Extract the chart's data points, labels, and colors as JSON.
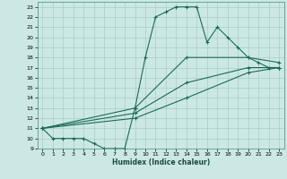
{
  "xlabel": "Humidex (Indice chaleur)",
  "background_color": "#cce8e4",
  "grid_color": "#a8ccc8",
  "line_color": "#1a6b5a",
  "xlim": [
    -0.5,
    23.5
  ],
  "ylim": [
    9,
    23.5
  ],
  "yticks": [
    9,
    10,
    11,
    12,
    13,
    14,
    15,
    16,
    17,
    18,
    19,
    20,
    21,
    22,
    23
  ],
  "xticks": [
    0,
    1,
    2,
    3,
    4,
    5,
    6,
    7,
    8,
    9,
    10,
    11,
    12,
    13,
    14,
    15,
    16,
    17,
    18,
    19,
    20,
    21,
    22,
    23
  ],
  "series": [
    {
      "x": [
        0,
        1,
        2,
        3,
        4,
        5,
        6,
        7,
        8,
        9,
        10,
        11,
        12,
        13,
        14,
        15,
        16,
        17,
        18,
        19,
        20,
        21,
        22,
        23
      ],
      "y": [
        11,
        10,
        10,
        10,
        10,
        9.5,
        9,
        9,
        9,
        13,
        18,
        22,
        22.5,
        23,
        23,
        23,
        19.5,
        21,
        20,
        19,
        18,
        17.5,
        17,
        17
      ]
    },
    {
      "x": [
        0,
        9,
        14,
        20,
        23
      ],
      "y": [
        11,
        13,
        18,
        18,
        17.5
      ]
    },
    {
      "x": [
        0,
        9,
        14,
        20,
        23
      ],
      "y": [
        11,
        12.5,
        15.5,
        17,
        17
      ]
    },
    {
      "x": [
        0,
        9,
        14,
        20,
        23
      ],
      "y": [
        11,
        12,
        14,
        16.5,
        17
      ]
    }
  ]
}
